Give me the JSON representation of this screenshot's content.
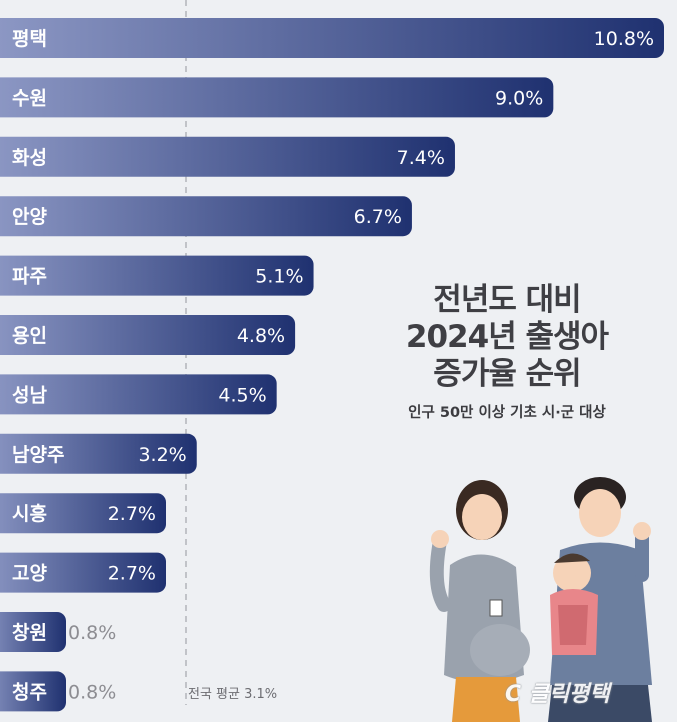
{
  "chart_data": {
    "type": "bar",
    "orientation": "horizontal",
    "title_lines": [
      "전년도 대비",
      "2024년 출생아",
      "증가율 순위"
    ],
    "subtitle": "인구 50만 이상 기초 시·군 대상",
    "categories": [
      "평택",
      "수원",
      "화성",
      "안양",
      "파주",
      "용인",
      "성남",
      "남양주",
      "시흥",
      "고양",
      "창원",
      "청주"
    ],
    "values": [
      10.8,
      9.0,
      7.4,
      6.7,
      5.1,
      4.8,
      4.5,
      3.2,
      2.7,
      2.7,
      0.8,
      0.8
    ],
    "value_labels": [
      "10.8%",
      "9.0%",
      "7.4%",
      "6.7%",
      "5.1%",
      "4.8%",
      "4.5%",
      "3.2%",
      "2.7%",
      "2.7%",
      "0.8%",
      "0.8%"
    ],
    "xlim": [
      0,
      10.8
    ],
    "reference_line": {
      "value": 3.1,
      "label": "전국 평균 3.1%"
    },
    "colors": {
      "bar_start": "#8f9ac6",
      "bar_end": "#1f3170",
      "text_on_bar": "#ffffff",
      "text_off_bar": "#8d8d92",
      "category_text": "#ffffff"
    }
  },
  "watermark": "C 클릭평택"
}
